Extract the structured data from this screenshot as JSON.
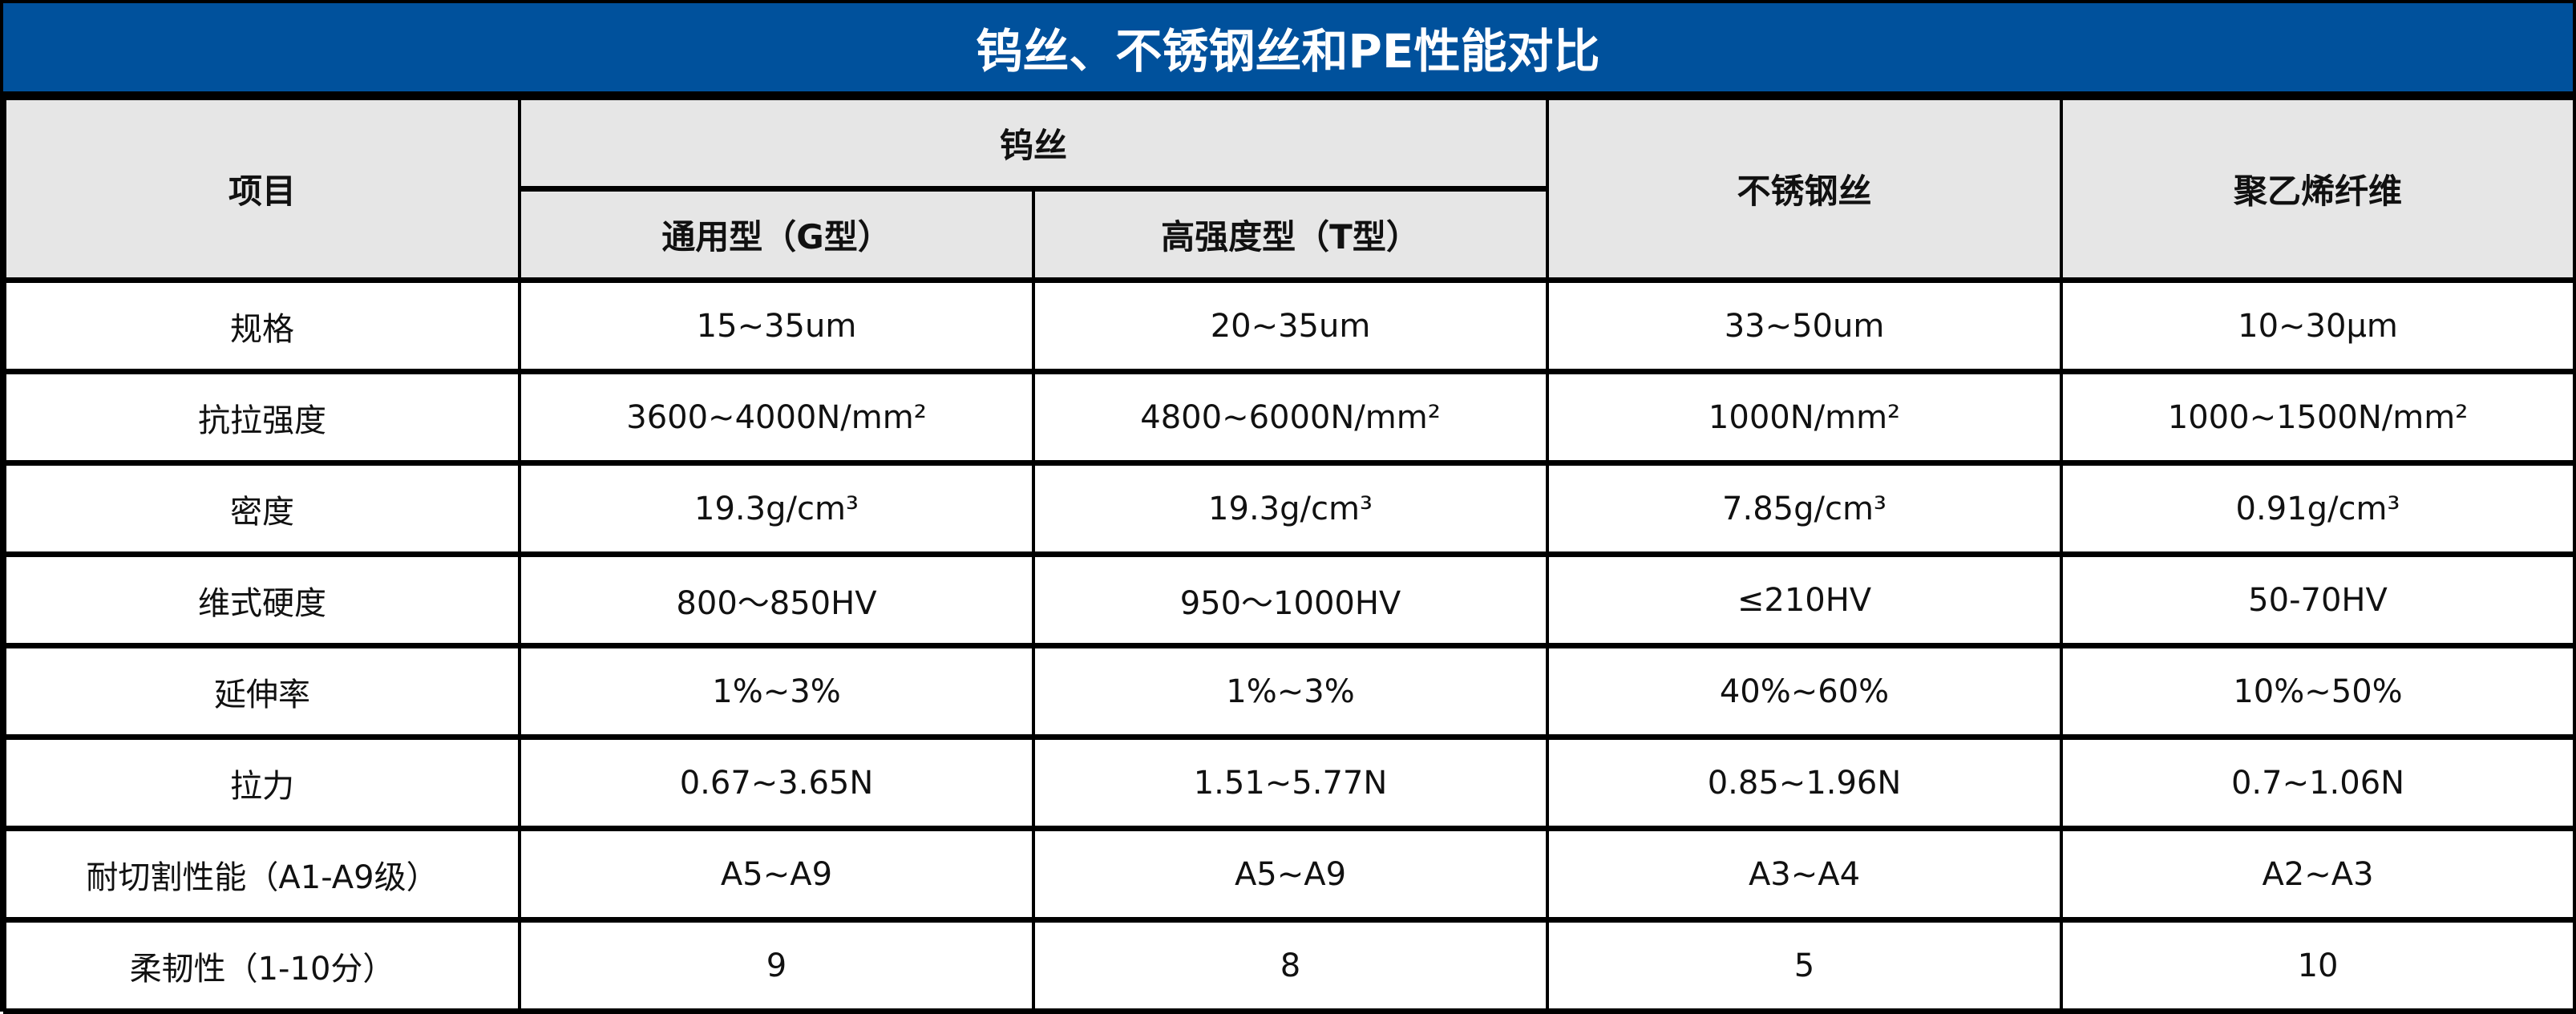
{
  "title": "钨丝、不锈钢丝和PE性能对比",
  "colors": {
    "title_bg": "#00519c",
    "header_bg": "#e6e6e6",
    "border": "#000000"
  },
  "header": {
    "item": "项目",
    "tungsten": "钨丝",
    "tungsten_g": "通用型（G型）",
    "tungsten_t": "高强度型（T型）",
    "stainless": "不锈钢丝",
    "pe": "聚乙烯纤维"
  },
  "rows": [
    {
      "label": "规格",
      "g": "15~35um",
      "t": "20~35um",
      "ss": "33~50um",
      "pe": "10~30μm"
    },
    {
      "label": "抗拉强度",
      "g": "3600~4000N/mm²",
      "t": "4800~6000N/mm²",
      "ss": "1000N/mm²",
      "pe": "1000~1500N/mm²"
    },
    {
      "label": "密度",
      "g": "19.3g/cm³",
      "t": "19.3g/cm³",
      "ss": "7.85g/cm³",
      "pe": "0.91g/cm³"
    },
    {
      "label": "维式硬度",
      "g": "800～850HV",
      "t": "950～1000HV",
      "ss": "≤210HV",
      "pe": "50-70HV"
    },
    {
      "label": "延伸率",
      "g": "1%~3%",
      "t": "1%~3%",
      "ss": "40%~60%",
      "pe": "10%~50%"
    },
    {
      "label": "拉力",
      "g": "0.67~3.65N",
      "t": "1.51~5.77N",
      "ss": "0.85~1.96N",
      "pe": "0.7~1.06N"
    },
    {
      "label": "耐切割性能（A1-A9级）",
      "g": "A5~A9",
      "t": "A5~A9",
      "ss": "A3~A4",
      "pe": "A2~A3"
    },
    {
      "label": "柔韧性（1-10分）",
      "g": "9",
      "t": "8",
      "ss": "5",
      "pe": "10"
    }
  ]
}
